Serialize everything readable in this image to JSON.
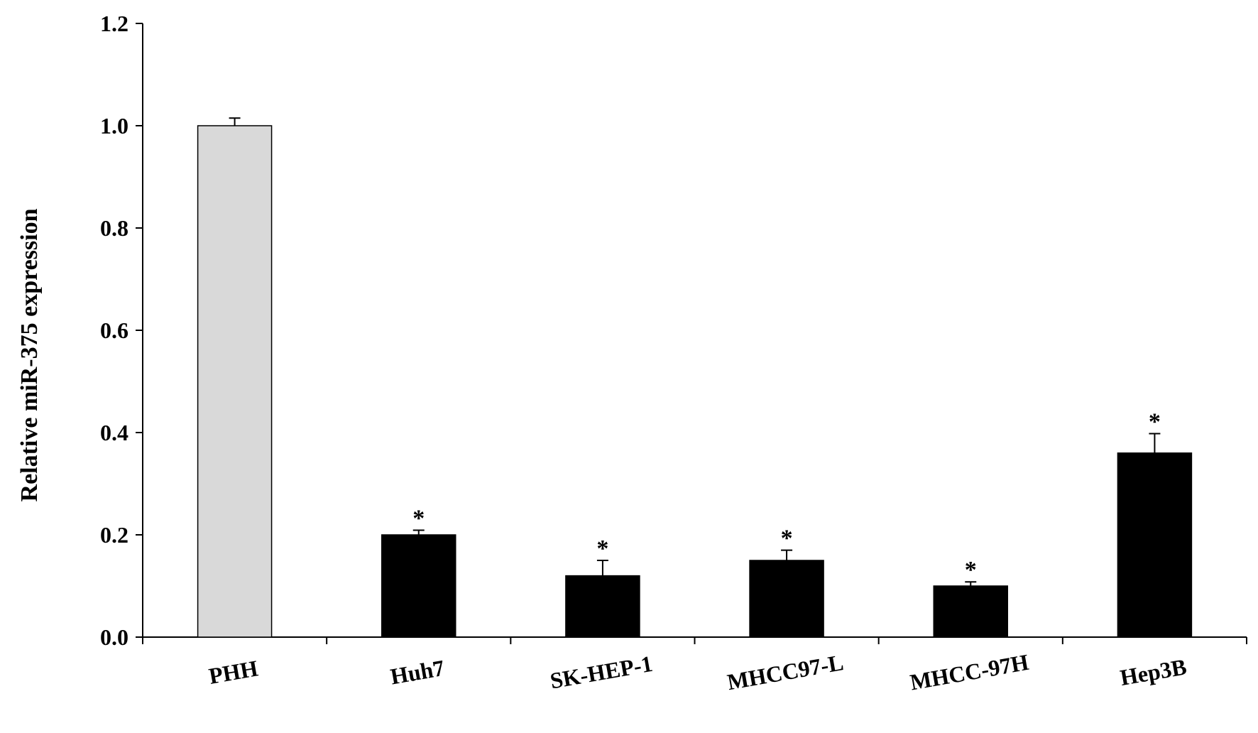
{
  "chart_data": {
    "type": "bar",
    "title": "",
    "xlabel": "",
    "ylabel": "Relative miR-375 expression",
    "ylim": [
      0,
      1.2
    ],
    "y_ticks": [
      "0.0",
      "0.2",
      "0.4",
      "0.6",
      "0.8",
      "1.0",
      "1.2"
    ],
    "y_tick_values": [
      0,
      0.2,
      0.4,
      0.6,
      0.8,
      1.0,
      1.2
    ],
    "categories": [
      "PHH",
      "Huh7",
      "SK-HEP-1",
      "MHCC97-L",
      "MHCC-97H",
      "Hep3B"
    ],
    "values": [
      1.0,
      0.2,
      0.12,
      0.15,
      0.1,
      0.36
    ],
    "errors": [
      0.015,
      0.009,
      0.03,
      0.02,
      0.008,
      0.038
    ],
    "significance": [
      "",
      "*",
      "*",
      "*",
      "*",
      "*"
    ],
    "bar_colors": [
      "#d9d9d9",
      "#000000",
      "#000000",
      "#000000",
      "#000000",
      "#000000"
    ],
    "grid": false,
    "legend": "none"
  }
}
